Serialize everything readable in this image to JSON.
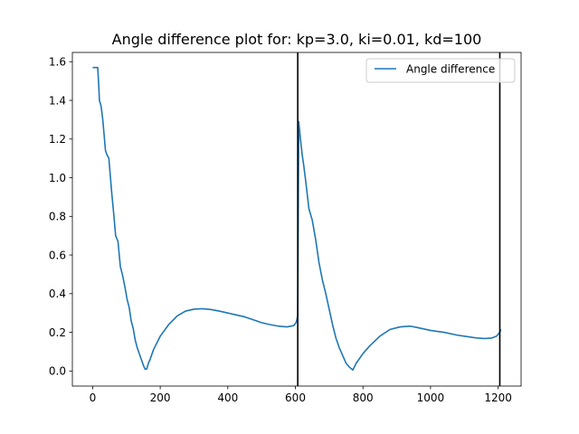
{
  "chart_data": {
    "type": "line",
    "title": "Angle difference plot for: kp=3.0, ki=0.01, kd=100",
    "xlabel": "",
    "ylabel": "",
    "xlim": [
      -60,
      1268
    ],
    "ylim": [
      -0.078,
      1.648
    ],
    "xticks": [
      0,
      200,
      400,
      600,
      800,
      1000,
      1200
    ],
    "xtick_labels": [
      "0",
      "200",
      "400",
      "600",
      "800",
      "1000",
      "1200"
    ],
    "yticks": [
      0.0,
      0.2,
      0.4,
      0.6,
      0.8,
      1.0,
      1.2,
      1.4,
      1.6
    ],
    "ytick_labels": [
      "0.0",
      "0.2",
      "0.4",
      "0.6",
      "0.8",
      "1.0",
      "1.2",
      "1.4",
      "1.6"
    ],
    "grid": false,
    "legend_position": "upper right",
    "series": [
      {
        "name": "Angle difference",
        "color": "#1f77b4",
        "x": [
          0,
          15,
          18,
          20,
          25,
          30,
          38,
          42,
          48,
          56,
          62,
          68,
          75,
          82,
          88,
          96,
          102,
          108,
          114,
          120,
          126,
          132,
          138,
          144,
          150,
          155,
          160,
          165,
          170,
          180,
          200,
          225,
          250,
          275,
          300,
          325,
          350,
          375,
          400,
          425,
          450,
          475,
          500,
          525,
          550,
          575,
          595,
          602,
          605,
          607,
          610,
          615,
          620,
          625,
          630,
          640,
          650,
          660,
          670,
          680,
          690,
          700,
          710,
          720,
          730,
          740,
          750,
          760,
          770,
          780,
          800,
          820,
          850,
          880,
          910,
          940,
          960,
          1000,
          1040,
          1080,
          1100,
          1120,
          1140,
          1160,
          1180,
          1195,
          1205,
          1208
        ],
        "values": [
          1.57,
          1.57,
          1.48,
          1.4,
          1.37,
          1.3,
          1.14,
          1.12,
          1.1,
          0.93,
          0.82,
          0.7,
          0.67,
          0.54,
          0.5,
          0.43,
          0.37,
          0.33,
          0.26,
          0.22,
          0.16,
          0.12,
          0.09,
          0.06,
          0.03,
          0.01,
          0.01,
          0.04,
          0.06,
          0.11,
          0.18,
          0.24,
          0.285,
          0.31,
          0.32,
          0.322,
          0.318,
          0.31,
          0.3,
          0.29,
          0.28,
          0.265,
          0.25,
          0.24,
          0.232,
          0.228,
          0.235,
          0.25,
          0.27,
          0.29,
          1.29,
          1.2,
          1.12,
          1.06,
          0.99,
          0.84,
          0.78,
          0.68,
          0.56,
          0.47,
          0.4,
          0.32,
          0.24,
          0.17,
          0.12,
          0.08,
          0.04,
          0.02,
          0.005,
          0.04,
          0.09,
          0.13,
          0.18,
          0.215,
          0.228,
          0.232,
          0.225,
          0.21,
          0.2,
          0.185,
          0.18,
          0.175,
          0.17,
          0.168,
          0.17,
          0.18,
          0.2,
          0.215
        ]
      }
    ],
    "vlines": [
      {
        "x": 607,
        "color": "#000000"
      },
      {
        "x": 1205,
        "color": "#000000"
      }
    ]
  }
}
